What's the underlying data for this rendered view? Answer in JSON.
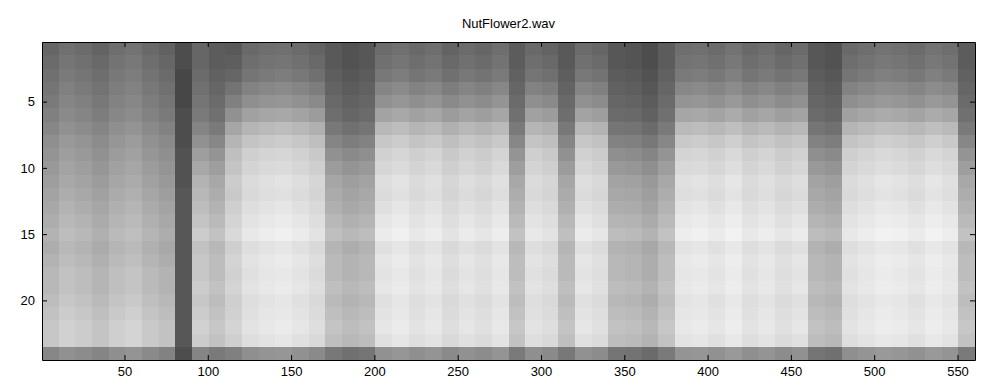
{
  "chart_data": {
    "type": "heatmap",
    "title": "NutFlower2.wav",
    "xlim": [
      0.5,
      560.5
    ],
    "ylim": [
      0.5,
      24.5
    ],
    "xticks": [
      50,
      100,
      150,
      200,
      250,
      300,
      350,
      400,
      450,
      500,
      550
    ],
    "yticks": [
      5,
      10,
      15,
      20
    ],
    "zlim": [
      0,
      100
    ],
    "x_edges": [
      0.5,
      10.5,
      20.5,
      30.5,
      40.5,
      50.5,
      60.5,
      70.5,
      80.5,
      90.5,
      100.5,
      110.5,
      120.5,
      130.5,
      140.5,
      150.5,
      160.5,
      170.5,
      180.5,
      190.5,
      200.5,
      210.5,
      220.5,
      230.5,
      240.5,
      250.5,
      260.5,
      270.5,
      280.5,
      290.5,
      300.5,
      310.5,
      320.5,
      330.5,
      340.5,
      350.5,
      360.5,
      370.5,
      380.5,
      390.5,
      400.5,
      410.5,
      420.5,
      430.5,
      440.5,
      450.5,
      460.5,
      470.5,
      480.5,
      490.5,
      500.5,
      510.5,
      520.5,
      530.5,
      540.5,
      550.5,
      560.5
    ],
    "y_edges": [
      0.5,
      1.5,
      2.5,
      3.5,
      4.5,
      5.5,
      6.5,
      7.5,
      8.5,
      9.5,
      10.5,
      11.5,
      12.5,
      13.5,
      14.5,
      15.5,
      16.5,
      17.5,
      18.5,
      19.5,
      20.5,
      21.5,
      22.5,
      23.5,
      24.5
    ],
    "cells": [
      [
        40,
        44,
        42,
        39,
        43,
        45,
        41,
        38,
        30,
        40,
        36,
        35,
        41,
        43,
        44,
        42,
        39,
        35,
        32,
        34,
        42,
        44,
        41,
        43,
        39,
        42,
        40,
        43,
        36,
        41,
        39,
        35,
        42,
        40,
        34,
        33,
        30,
        36,
        43,
        44,
        42,
        45,
        41,
        43,
        40,
        42,
        34,
        32,
        41,
        43,
        45,
        44,
        42,
        45,
        43,
        36
      ],
      [
        42,
        46,
        44,
        41,
        45,
        47,
        43,
        40,
        30,
        40,
        36,
        37,
        43,
        45,
        46,
        44,
        41,
        35,
        32,
        34,
        44,
        46,
        43,
        45,
        41,
        44,
        42,
        45,
        36,
        43,
        41,
        35,
        44,
        42,
        34,
        33,
        30,
        36,
        45,
        46,
        44,
        47,
        43,
        45,
        42,
        44,
        34,
        32,
        43,
        45,
        47,
        46,
        44,
        47,
        45,
        36
      ],
      [
        44,
        48,
        46,
        43,
        47,
        49,
        45,
        42,
        28,
        42,
        38,
        40,
        46,
        48,
        49,
        47,
        44,
        37,
        34,
        36,
        47,
        49,
        46,
        48,
        44,
        47,
        45,
        48,
        38,
        46,
        44,
        37,
        47,
        45,
        36,
        35,
        32,
        38,
        48,
        49,
        47,
        50,
        46,
        48,
        45,
        47,
        36,
        34,
        46,
        48,
        50,
        49,
        47,
        50,
        48,
        38
      ],
      [
        46,
        50,
        48,
        45,
        49,
        51,
        47,
        44,
        28,
        44,
        40,
        45,
        51,
        53,
        54,
        52,
        49,
        39,
        36,
        38,
        52,
        54,
        51,
        53,
        49,
        52,
        50,
        53,
        40,
        51,
        49,
        39,
        52,
        50,
        38,
        37,
        34,
        40,
        53,
        54,
        52,
        55,
        51,
        53,
        50,
        52,
        38,
        36,
        51,
        53,
        55,
        54,
        52,
        55,
        53,
        40
      ],
      [
        48,
        52,
        50,
        47,
        51,
        53,
        49,
        46,
        28,
        46,
        42,
        50,
        56,
        58,
        59,
        57,
        54,
        41,
        38,
        40,
        57,
        59,
        56,
        58,
        54,
        57,
        55,
        58,
        42,
        56,
        54,
        41,
        57,
        55,
        40,
        39,
        36,
        42,
        58,
        59,
        57,
        60,
        56,
        58,
        55,
        57,
        40,
        38,
        56,
        58,
        60,
        59,
        57,
        60,
        58,
        42
      ],
      [
        50,
        54,
        52,
        49,
        53,
        55,
        51,
        48,
        30,
        48,
        44,
        57,
        63,
        65,
        66,
        64,
        61,
        43,
        40,
        42,
        64,
        66,
        63,
        65,
        61,
        64,
        62,
        65,
        44,
        63,
        61,
        43,
        64,
        62,
        42,
        41,
        38,
        44,
        65,
        66,
        64,
        67,
        63,
        65,
        62,
        64,
        42,
        40,
        63,
        65,
        67,
        66,
        64,
        67,
        65,
        44
      ],
      [
        53,
        57,
        55,
        52,
        56,
        58,
        54,
        51,
        30,
        52,
        48,
        65,
        71,
        73,
        74,
        72,
        69,
        47,
        44,
        46,
        72,
        74,
        71,
        73,
        69,
        72,
        70,
        73,
        48,
        71,
        69,
        47,
        72,
        70,
        46,
        45,
        42,
        48,
        73,
        74,
        72,
        75,
        71,
        73,
        70,
        72,
        46,
        44,
        71,
        73,
        75,
        74,
        72,
        75,
        73,
        48
      ],
      [
        56,
        60,
        58,
        55,
        59,
        61,
        57,
        54,
        30,
        57,
        53,
        71,
        77,
        79,
        80,
        78,
        75,
        52,
        49,
        51,
        78,
        80,
        77,
        79,
        75,
        78,
        76,
        79,
        53,
        77,
        75,
        52,
        78,
        76,
        51,
        50,
        47,
        53,
        79,
        80,
        78,
        81,
        77,
        79,
        76,
        78,
        51,
        49,
        77,
        79,
        81,
        80,
        78,
        81,
        79,
        53
      ],
      [
        58,
        62,
        60,
        57,
        61,
        63,
        59,
        56,
        32,
        62,
        58,
        75,
        81,
        83,
        84,
        82,
        79,
        57,
        54,
        56,
        82,
        84,
        81,
        83,
        79,
        82,
        80,
        83,
        58,
        81,
        79,
        57,
        82,
        80,
        56,
        55,
        52,
        58,
        83,
        84,
        82,
        85,
        81,
        83,
        80,
        82,
        56,
        54,
        81,
        83,
        85,
        84,
        82,
        85,
        83,
        58
      ],
      [
        60,
        64,
        62,
        59,
        63,
        65,
        61,
        58,
        32,
        66,
        62,
        77,
        83,
        85,
        86,
        84,
        81,
        61,
        58,
        60,
        84,
        86,
        83,
        85,
        81,
        84,
        82,
        85,
        62,
        83,
        81,
        61,
        84,
        82,
        60,
        59,
        56,
        62,
        85,
        86,
        84,
        87,
        83,
        85,
        82,
        84,
        60,
        58,
        83,
        85,
        87,
        86,
        84,
        87,
        85,
        62
      ],
      [
        62,
        66,
        64,
        61,
        65,
        67,
        63,
        60,
        32,
        70,
        66,
        80,
        86,
        88,
        89,
        87,
        84,
        65,
        62,
        64,
        87,
        89,
        86,
        88,
        84,
        87,
        85,
        88,
        66,
        86,
        84,
        65,
        87,
        85,
        64,
        63,
        60,
        66,
        88,
        89,
        87,
        90,
        86,
        88,
        85,
        87,
        64,
        62,
        86,
        88,
        90,
        89,
        87,
        90,
        88,
        66
      ],
      [
        64,
        68,
        66,
        63,
        67,
        69,
        65,
        62,
        34,
        72,
        68,
        79,
        85,
        87,
        88,
        86,
        83,
        67,
        64,
        66,
        86,
        88,
        85,
        87,
        83,
        86,
        84,
        87,
        68,
        85,
        83,
        67,
        86,
        84,
        66,
        65,
        62,
        68,
        87,
        88,
        86,
        89,
        85,
        87,
        84,
        86,
        66,
        64,
        85,
        87,
        89,
        88,
        86,
        89,
        87,
        68
      ],
      [
        66,
        70,
        68,
        65,
        69,
        71,
        67,
        64,
        34,
        74,
        70,
        81,
        87,
        89,
        90,
        88,
        85,
        69,
        66,
        68,
        88,
        90,
        87,
        89,
        85,
        88,
        86,
        89,
        70,
        87,
        85,
        69,
        88,
        86,
        68,
        67,
        64,
        70,
        89,
        90,
        88,
        91,
        87,
        89,
        86,
        88,
        68,
        66,
        87,
        89,
        91,
        90,
        88,
        91,
        89,
        70
      ],
      [
        68,
        72,
        70,
        67,
        71,
        73,
        69,
        66,
        34,
        77,
        73,
        83,
        89,
        91,
        92,
        90,
        87,
        72,
        69,
        71,
        90,
        92,
        89,
        91,
        87,
        90,
        88,
        91,
        73,
        89,
        87,
        72,
        90,
        88,
        71,
        70,
        67,
        73,
        91,
        92,
        90,
        93,
        89,
        91,
        88,
        90,
        71,
        69,
        89,
        91,
        93,
        92,
        90,
        93,
        91,
        73
      ],
      [
        70,
        74,
        72,
        69,
        73,
        75,
        71,
        68,
        34,
        80,
        76,
        85,
        91,
        93,
        94,
        92,
        89,
        75,
        72,
        74,
        92,
        94,
        91,
        93,
        89,
        92,
        90,
        93,
        76,
        91,
        89,
        75,
        92,
        90,
        74,
        73,
        70,
        76,
        93,
        94,
        92,
        95,
        91,
        93,
        90,
        92,
        74,
        72,
        91,
        93,
        95,
        94,
        92,
        95,
        93,
        76
      ],
      [
        68,
        72,
        70,
        67,
        71,
        73,
        69,
        66,
        34,
        76,
        72,
        81,
        87,
        89,
        90,
        88,
        85,
        71,
        68,
        70,
        88,
        90,
        87,
        89,
        85,
        88,
        86,
        89,
        72,
        87,
        85,
        71,
        88,
        86,
        70,
        69,
        66,
        72,
        89,
        90,
        88,
        91,
        87,
        89,
        86,
        88,
        70,
        68,
        87,
        89,
        91,
        90,
        88,
        91,
        89,
        72
      ],
      [
        70,
        74,
        72,
        69,
        73,
        75,
        71,
        68,
        34,
        78,
        74,
        83,
        89,
        91,
        92,
        90,
        87,
        73,
        70,
        72,
        90,
        92,
        89,
        91,
        87,
        90,
        88,
        91,
        74,
        89,
        87,
        73,
        90,
        88,
        72,
        71,
        68,
        74,
        91,
        92,
        90,
        93,
        89,
        91,
        88,
        90,
        72,
        70,
        89,
        91,
        93,
        92,
        90,
        93,
        91,
        74
      ],
      [
        72,
        76,
        74,
        71,
        75,
        77,
        73,
        70,
        34,
        78,
        74,
        82,
        88,
        90,
        91,
        89,
        86,
        73,
        70,
        72,
        89,
        91,
        88,
        90,
        86,
        89,
        87,
        90,
        74,
        88,
        86,
        73,
        89,
        87,
        72,
        71,
        68,
        74,
        90,
        91,
        89,
        92,
        88,
        90,
        87,
        89,
        72,
        70,
        88,
        90,
        92,
        91,
        89,
        92,
        90,
        74
      ],
      [
        72,
        76,
        74,
        71,
        75,
        77,
        73,
        70,
        34,
        80,
        76,
        83,
        89,
        91,
        92,
        90,
        87,
        75,
        72,
        74,
        90,
        92,
        89,
        91,
        87,
        90,
        88,
        91,
        76,
        89,
        87,
        75,
        90,
        88,
        74,
        73,
        70,
        76,
        91,
        92,
        90,
        93,
        89,
        91,
        88,
        90,
        74,
        72,
        89,
        91,
        93,
        92,
        90,
        93,
        91,
        76
      ],
      [
        74,
        78,
        76,
        73,
        77,
        79,
        75,
        72,
        34,
        78,
        74,
        81,
        87,
        89,
        90,
        88,
        85,
        73,
        70,
        72,
        88,
        90,
        87,
        89,
        85,
        88,
        86,
        89,
        74,
        87,
        85,
        73,
        88,
        86,
        72,
        71,
        68,
        74,
        89,
        90,
        88,
        91,
        87,
        89,
        86,
        88,
        72,
        70,
        87,
        89,
        91,
        90,
        88,
        91,
        89,
        74
      ],
      [
        76,
        80,
        78,
        75,
        79,
        81,
        77,
        74,
        34,
        80,
        76,
        82,
        88,
        90,
        91,
        89,
        86,
        75,
        72,
        74,
        89,
        91,
        88,
        90,
        86,
        89,
        87,
        90,
        76,
        88,
        86,
        75,
        89,
        87,
        74,
        73,
        70,
        76,
        90,
        91,
        89,
        92,
        88,
        90,
        87,
        89,
        74,
        72,
        88,
        90,
        92,
        91,
        89,
        92,
        90,
        76
      ],
      [
        78,
        82,
        80,
        77,
        81,
        83,
        79,
        76,
        34,
        82,
        78,
        83,
        89,
        91,
        92,
        90,
        87,
        77,
        74,
        76,
        90,
        92,
        89,
        91,
        87,
        90,
        88,
        91,
        78,
        89,
        87,
        77,
        90,
        88,
        76,
        75,
        72,
        78,
        91,
        92,
        90,
        93,
        89,
        91,
        88,
        90,
        76,
        74,
        89,
        91,
        93,
        92,
        90,
        93,
        91,
        78
      ],
      [
        78,
        82,
        80,
        77,
        81,
        83,
        79,
        76,
        34,
        80,
        76,
        81,
        87,
        89,
        90,
        88,
        85,
        75,
        72,
        74,
        88,
        90,
        87,
        89,
        85,
        88,
        86,
        89,
        76,
        87,
        85,
        75,
        88,
        86,
        74,
        73,
        70,
        76,
        89,
        90,
        88,
        91,
        87,
        89,
        86,
        88,
        74,
        72,
        87,
        89,
        91,
        90,
        88,
        91,
        89,
        76
      ],
      [
        53,
        57,
        55,
        52,
        56,
        58,
        54,
        51,
        30,
        52,
        48,
        50,
        56,
        58,
        59,
        57,
        54,
        47,
        44,
        46,
        57,
        59,
        56,
        58,
        54,
        57,
        55,
        58,
        48,
        56,
        54,
        47,
        57,
        55,
        46,
        45,
        42,
        48,
        58,
        59,
        57,
        60,
        56,
        58,
        55,
        57,
        46,
        44,
        56,
        58,
        60,
        59,
        57,
        60,
        58,
        48
      ]
    ]
  }
}
